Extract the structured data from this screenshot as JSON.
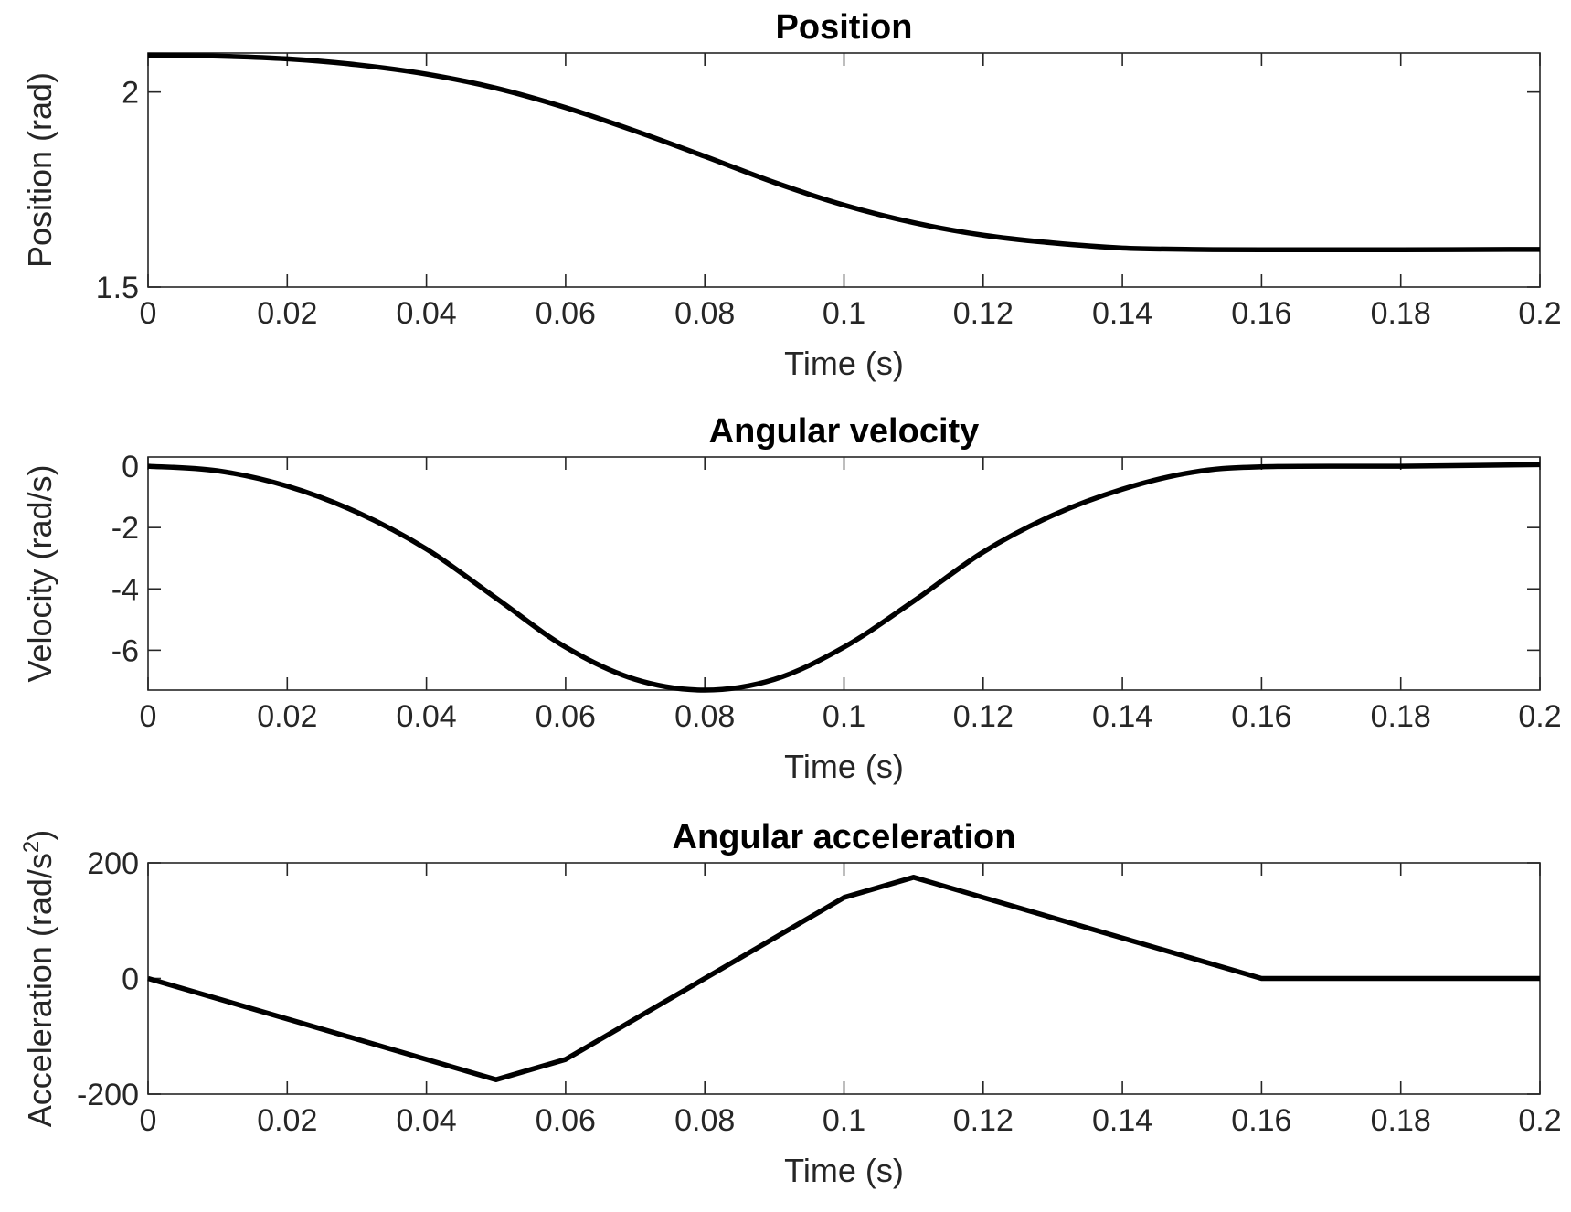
{
  "chart_data": [
    {
      "type": "line",
      "title": "Position",
      "xlabel": "Time (s)",
      "ylabel": "Position (rad)",
      "xlim": [
        0,
        0.2
      ],
      "ylim": [
        1.5,
        2.1
      ],
      "xticks": [
        0,
        0.02,
        0.04,
        0.06,
        0.08,
        0.1,
        0.12,
        0.14,
        0.16,
        0.18,
        0.2
      ],
      "xticklabels": [
        "0",
        "0.02",
        "0.04",
        "0.06",
        "0.08",
        "0.1",
        "0.12",
        "0.14",
        "0.16",
        "0.18",
        "0.2"
      ],
      "yticks": [
        1.5,
        2
      ],
      "yticklabels": [
        "1.5",
        "2"
      ],
      "series": [
        {
          "name": "position",
          "color": "#000000",
          "x": [
            0,
            0.01,
            0.02,
            0.03,
            0.04,
            0.05,
            0.06,
            0.07,
            0.08,
            0.09,
            0.1,
            0.11,
            0.12,
            0.13,
            0.14,
            0.15,
            0.16,
            0.18,
            0.2
          ],
          "y": [
            2.094,
            2.092,
            2.085,
            2.07,
            2.046,
            2.01,
            1.96,
            1.9,
            1.835,
            1.768,
            1.71,
            1.665,
            1.633,
            1.613,
            1.6,
            1.5965,
            1.5955,
            1.5955,
            1.5965
          ]
        }
      ]
    },
    {
      "type": "line",
      "title": "Angular velocity",
      "xlabel": "Time (s)",
      "ylabel": "Velocity (rad/s)",
      "xlim": [
        0,
        0.2
      ],
      "ylim": [
        -7.3,
        0.3
      ],
      "xticks": [
        0,
        0.02,
        0.04,
        0.06,
        0.08,
        0.1,
        0.12,
        0.14,
        0.16,
        0.18,
        0.2
      ],
      "xticklabels": [
        "0",
        "0.02",
        "0.04",
        "0.06",
        "0.08",
        "0.1",
        "0.12",
        "0.14",
        "0.16",
        "0.18",
        "0.2"
      ],
      "yticks": [
        -6,
        -4,
        -2,
        0
      ],
      "yticklabels": [
        "-6",
        "-4",
        "-2",
        "0"
      ],
      "series": [
        {
          "name": "velocity",
          "color": "#000000",
          "x": [
            0,
            0.01,
            0.02,
            0.03,
            0.04,
            0.05,
            0.06,
            0.07,
            0.08,
            0.09,
            0.1,
            0.11,
            0.12,
            0.13,
            0.14,
            0.15,
            0.16,
            0.18,
            0.2
          ],
          "y": [
            0,
            -0.15,
            -0.65,
            -1.5,
            -2.7,
            -4.3,
            -5.9,
            -6.95,
            -7.3,
            -6.95,
            -5.9,
            -4.4,
            -2.8,
            -1.6,
            -0.75,
            -0.2,
            -0.02,
            0.0,
            0.05
          ]
        }
      ]
    },
    {
      "type": "line",
      "title": "Angular acceleration",
      "xlabel": "Time (s)",
      "ylabel": "Acceleration (rad/s",
      "ylabel_superscript": "2",
      "ylabel_suffix": ")",
      "xlim": [
        0,
        0.2
      ],
      "ylim": [
        -200,
        200
      ],
      "xticks": [
        0,
        0.02,
        0.04,
        0.06,
        0.08,
        0.1,
        0.12,
        0.14,
        0.16,
        0.18,
        0.2
      ],
      "xticklabels": [
        "0",
        "0.02",
        "0.04",
        "0.06",
        "0.08",
        "0.1",
        "0.12",
        "0.14",
        "0.16",
        "0.18",
        "0.2"
      ],
      "yticks": [
        -200,
        0,
        200
      ],
      "yticklabels": [
        "-200",
        "0",
        "200"
      ],
      "series": [
        {
          "name": "acceleration",
          "color": "#000000",
          "x": [
            0,
            0.05,
            0.06,
            0.1,
            0.11,
            0.16,
            0.2
          ],
          "y": [
            0,
            -175,
            -140,
            140,
            175,
            0,
            0
          ]
        }
      ]
    }
  ]
}
